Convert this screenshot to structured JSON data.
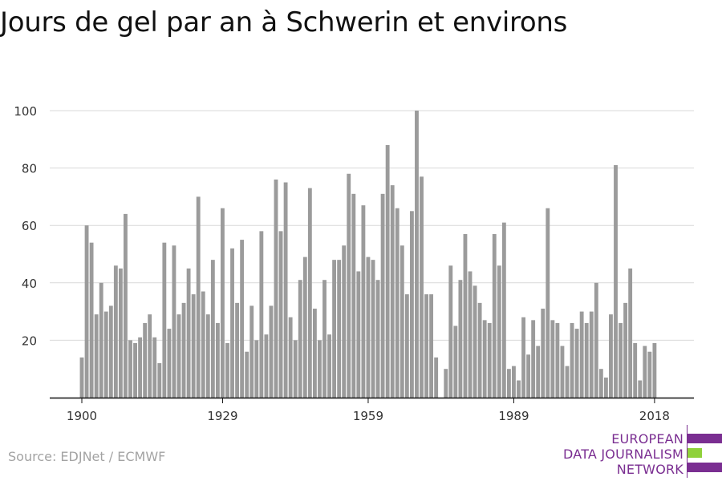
{
  "title": "Jours de gel par an à Schwerin et environs",
  "source": "Source: EDJNet / ECMWF",
  "logo": {
    "lines": [
      "EUROPEAN",
      "DATA JOURNALISM",
      "NETWORK"
    ],
    "colors": {
      "purple": "#7a2e91",
      "green": "#8fd13a"
    }
  },
  "chart_data": {
    "type": "bar",
    "title": "Jours de gel par an à Schwerin et environs",
    "xlabel": "",
    "ylabel": "",
    "ylim": [
      0,
      100
    ],
    "yticks": [
      20,
      40,
      60,
      80,
      100
    ],
    "xticks": [
      1900,
      1929,
      1959,
      1989,
      2018
    ],
    "grid": true,
    "bar_color": "#9b9b9b",
    "x": [
      1900,
      1901,
      1902,
      1903,
      1904,
      1905,
      1906,
      1907,
      1908,
      1909,
      1910,
      1911,
      1912,
      1913,
      1914,
      1915,
      1916,
      1917,
      1918,
      1919,
      1920,
      1921,
      1922,
      1923,
      1924,
      1925,
      1926,
      1927,
      1928,
      1929,
      1930,
      1931,
      1932,
      1933,
      1934,
      1935,
      1936,
      1937,
      1938,
      1939,
      1940,
      1941,
      1942,
      1943,
      1944,
      1945,
      1946,
      1947,
      1948,
      1949,
      1950,
      1951,
      1952,
      1953,
      1954,
      1955,
      1956,
      1957,
      1958,
      1959,
      1960,
      1961,
      1962,
      1963,
      1964,
      1965,
      1966,
      1967,
      1968,
      1969,
      1970,
      1971,
      1972,
      1973,
      1974,
      1975,
      1976,
      1977,
      1978,
      1979,
      1980,
      1981,
      1982,
      1983,
      1984,
      1985,
      1986,
      1987,
      1988,
      1989,
      1990,
      1991,
      1992,
      1993,
      1994,
      1995,
      1996,
      1997,
      1998,
      1999,
      2000,
      2001,
      2002,
      2003,
      2004,
      2005,
      2006,
      2007,
      2008,
      2009,
      2010,
      2011,
      2012,
      2013,
      2014,
      2015,
      2016,
      2017,
      2018
    ],
    "values": [
      14,
      60,
      54,
      29,
      40,
      30,
      32,
      46,
      45,
      64,
      20,
      19,
      21,
      26,
      29,
      21,
      12,
      54,
      24,
      53,
      29,
      33,
      45,
      36,
      70,
      37,
      29,
      48,
      26,
      66,
      19,
      52,
      33,
      55,
      16,
      32,
      20,
      58,
      22,
      32,
      76,
      58,
      75,
      28,
      20,
      41,
      49,
      73,
      31,
      20,
      41,
      22,
      48,
      48,
      53,
      78,
      71,
      44,
      67,
      49,
      48,
      41,
      71,
      88,
      74,
      66,
      53,
      36,
      65,
      100,
      77,
      36,
      36,
      14,
      0,
      10,
      46,
      25,
      41,
      57,
      44,
      39,
      33,
      27,
      26,
      57,
      46,
      61,
      10,
      11,
      6,
      28,
      15,
      27,
      18,
      31,
      66,
      27,
      26,
      18,
      11,
      26,
      24,
      30,
      26,
      30,
      40,
      10,
      7,
      29,
      81,
      26,
      33,
      45,
      19,
      6,
      18,
      16,
      19
    ]
  }
}
